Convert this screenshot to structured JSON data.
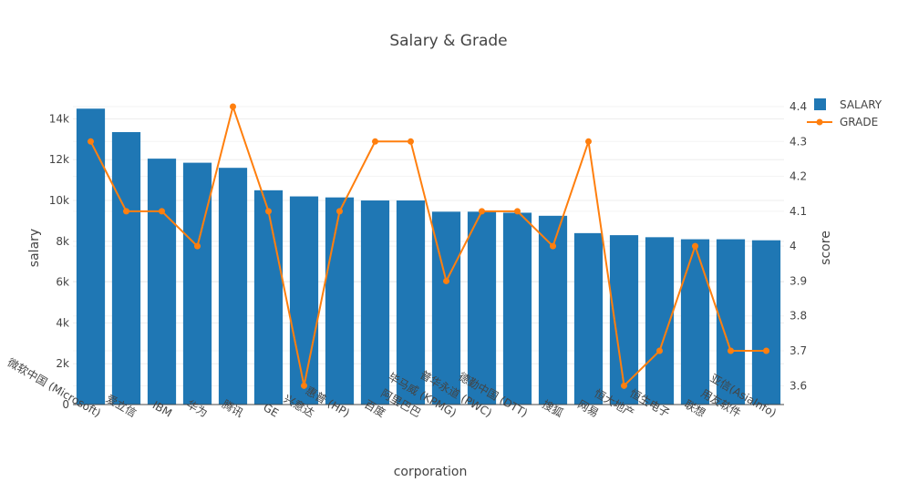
{
  "chart_data": {
    "type": "bar",
    "title": "Salary & Grade",
    "xlabel": "corporation",
    "ylabel": "salary",
    "y2label": "score",
    "categories": [
      "微软中国 (Microsoft)",
      "爱立信",
      "IBM",
      "华为",
      "腾讯",
      "GE",
      "兴意达",
      "惠普 (HP)",
      "百度",
      "阿里巴巴",
      "毕马威 (KPMG)",
      "普华永道 (PWC)",
      "德勤中国 (DTT)",
      "搜狐",
      "网易",
      "恒大地产",
      "恒生电子",
      "联想",
      "用友软件",
      "亚信(AsiaInfo)"
    ],
    "ylim": [
      0,
      14600
    ],
    "y_ticks": [
      0,
      2000,
      4000,
      6000,
      8000,
      10000,
      12000,
      14000
    ],
    "y_tick_labels": [
      "0",
      "2k",
      "4k",
      "6k",
      "8k",
      "10k",
      "12k",
      "14k"
    ],
    "y2lim": [
      3.546,
      4.4
    ],
    "y2_ticks": [
      3.6,
      3.7,
      3.8,
      3.9,
      4.0,
      4.1,
      4.2,
      4.3,
      4.4
    ],
    "y2_tick_labels": [
      "3.6",
      "3.7",
      "3.8",
      "3.9",
      "4",
      "4.1",
      "4.2",
      "4.3",
      "4.4"
    ],
    "legend_position": "top-right",
    "grid": true,
    "series": [
      {
        "name": "SALARY",
        "type": "bar",
        "axis": "left",
        "color": "#1f77b4",
        "values": [
          14500,
          13350,
          12050,
          11850,
          11600,
          10500,
          10200,
          10150,
          10000,
          10000,
          9450,
          9450,
          9400,
          9250,
          8400,
          8300,
          8200,
          8100,
          8100,
          8050
        ]
      },
      {
        "name": "GRADE",
        "type": "line",
        "axis": "right",
        "color": "#ff7f0e",
        "values": [
          4.3,
          4.1,
          4.1,
          4.0,
          4.4,
          4.1,
          3.6,
          4.1,
          4.3,
          4.3,
          3.9,
          4.1,
          4.1,
          4.0,
          4.3,
          3.6,
          3.7,
          4.0,
          3.7,
          3.7
        ]
      }
    ]
  }
}
